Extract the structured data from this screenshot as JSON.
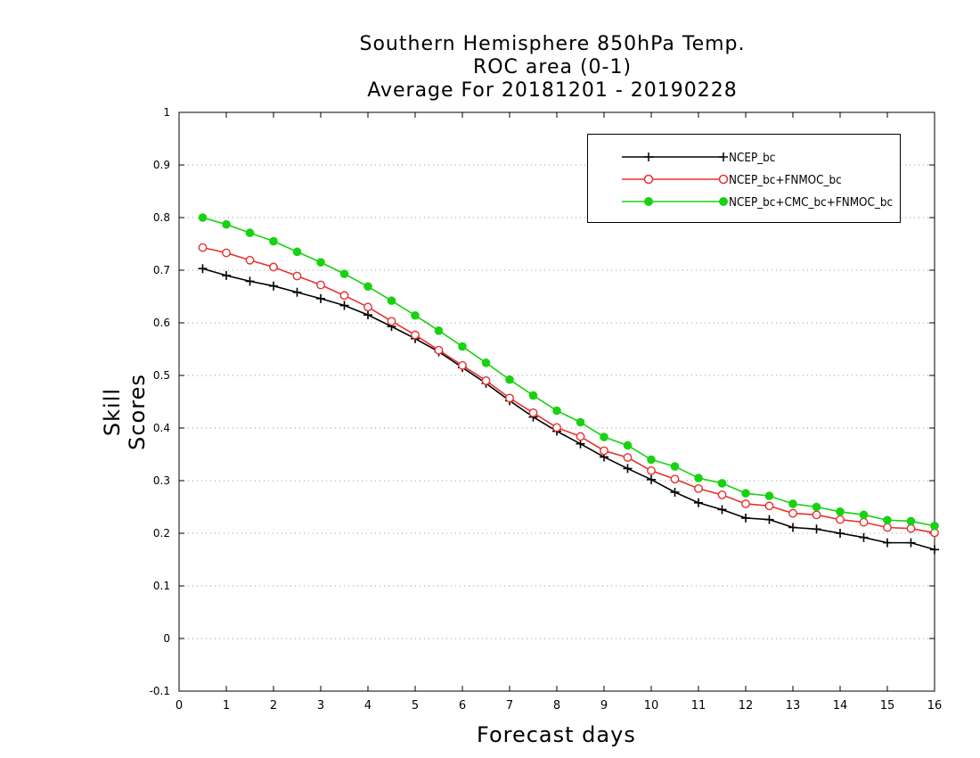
{
  "title": {
    "line1": "Southern Hemisphere 850hPa Temp.",
    "line2": "ROC area (0-1)",
    "line3": "Average For 20181201 - 20190228"
  },
  "chart_data": {
    "type": "line",
    "xlabel": "Forecast days",
    "ylabel": "Skill Scores",
    "xlim": [
      0,
      16
    ],
    "ylim": [
      -0.1,
      1
    ],
    "xticks": [
      "0",
      "1",
      "2",
      "3",
      "4",
      "5",
      "6",
      "7",
      "8",
      "9",
      "10",
      "11",
      "12",
      "13",
      "14",
      "15",
      "16"
    ],
    "yticks": [
      "-0.1",
      "0",
      "0.1",
      "0.2",
      "0.3",
      "0.4",
      "0.5",
      "0.6",
      "0.7",
      "0.8",
      "0.9",
      "1"
    ],
    "grid": true,
    "legend_position": "top-right",
    "x": [
      0.5,
      1,
      1.5,
      2,
      2.5,
      3,
      3.5,
      4,
      4.5,
      5,
      5.5,
      6,
      6.5,
      7,
      7.5,
      8,
      8.5,
      9,
      9.5,
      10,
      10.5,
      11,
      11.5,
      12,
      12.5,
      13,
      13.5,
      14,
      14.5,
      15,
      15.5,
      16
    ],
    "series": [
      {
        "name": "NCEP_bc",
        "color": "#000000",
        "marker": "plus",
        "values": [
          0.703,
          0.69,
          0.679,
          0.67,
          0.658,
          0.646,
          0.633,
          0.615,
          0.593,
          0.57,
          0.545,
          0.515,
          0.485,
          0.452,
          0.421,
          0.394,
          0.37,
          0.345,
          0.323,
          0.302,
          0.278,
          0.258,
          0.245,
          0.229,
          0.226,
          0.211,
          0.208,
          0.2,
          0.192,
          0.182,
          0.182,
          0.169
        ]
      },
      {
        "name": "NCEP_bc+FNMOC_bc",
        "color": "#e8302f",
        "marker": "open-circle",
        "values": [
          0.743,
          0.733,
          0.719,
          0.706,
          0.689,
          0.672,
          0.652,
          0.63,
          0.603,
          0.577,
          0.548,
          0.519,
          0.49,
          0.457,
          0.429,
          0.401,
          0.384,
          0.357,
          0.344,
          0.319,
          0.303,
          0.285,
          0.273,
          0.256,
          0.252,
          0.238,
          0.235,
          0.226,
          0.221,
          0.211,
          0.209,
          0.201
        ]
      },
      {
        "name": "NCEP_bc+CMC_bc+FNMOC_bc",
        "color": "#18d212",
        "marker": "filled-circle",
        "values": [
          0.8,
          0.787,
          0.771,
          0.755,
          0.735,
          0.715,
          0.693,
          0.669,
          0.642,
          0.614,
          0.585,
          0.555,
          0.524,
          0.492,
          0.462,
          0.433,
          0.411,
          0.383,
          0.367,
          0.34,
          0.327,
          0.305,
          0.295,
          0.276,
          0.271,
          0.256,
          0.25,
          0.241,
          0.235,
          0.225,
          0.223,
          0.214
        ]
      }
    ]
  }
}
